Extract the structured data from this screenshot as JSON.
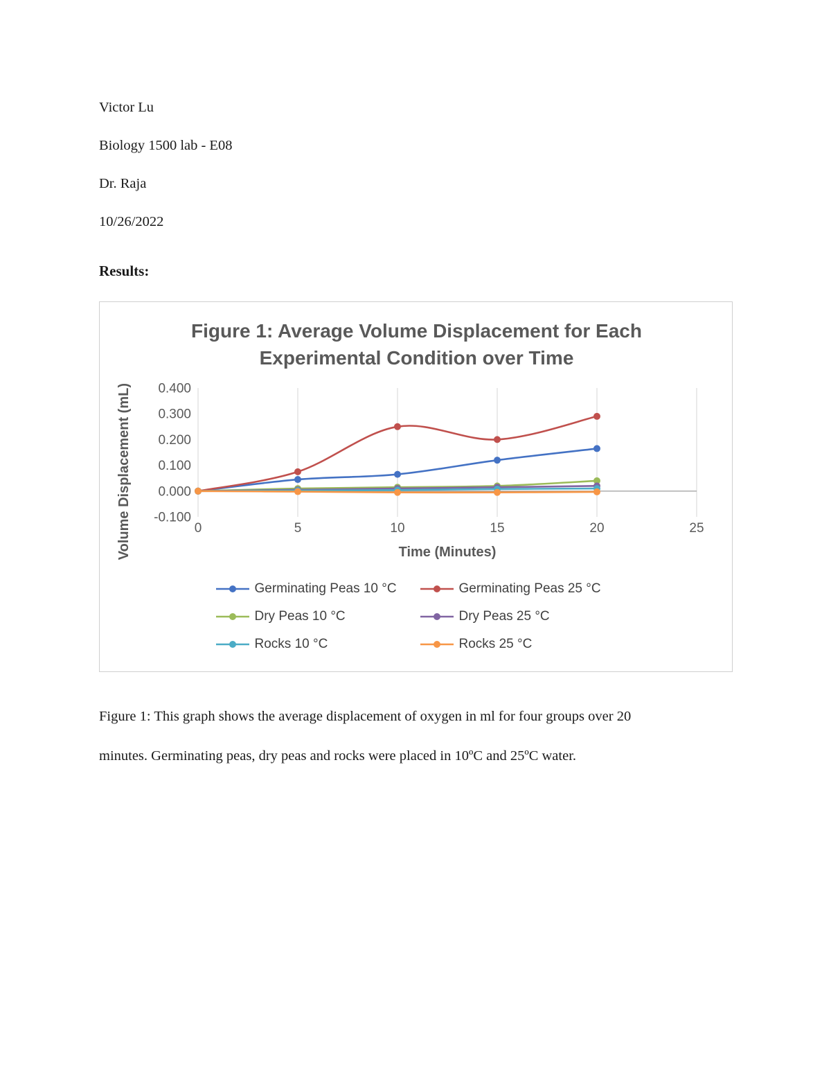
{
  "page": {
    "header_lines": [
      "Victor Lu",
      "Biology 1500 lab - E08",
      "Dr. Raja",
      "10/26/2022"
    ],
    "results_heading": "Results:",
    "caption_line1": "Figure 1: This graph shows the average displacement of oxygen in ml for four groups over 20",
    "caption_line2": "minutes. Germinating peas, dry peas and rocks were placed in 10ºC and 25ºC water."
  },
  "chart_data": {
    "type": "line",
    "title_line1": "Figure 1: Average Volume Displacement for Each",
    "title_line2": "Experimental Condition over Time",
    "xlabel": "Time (Minutes)",
    "ylabel": "Volume Displacement (mL)",
    "x": [
      0,
      5,
      10,
      15,
      20
    ],
    "xticks": [
      0,
      5,
      10,
      15,
      20,
      25
    ],
    "ytick_labels": [
      "0.400",
      "0.300",
      "0.200",
      "0.100",
      "0.000",
      "-0.100"
    ],
    "ytick_values": [
      0.4,
      0.3,
      0.2,
      0.1,
      0.0,
      -0.1
    ],
    "xlim": [
      0,
      25
    ],
    "ylim": [
      -0.1,
      0.4
    ],
    "gridlines": "vertical",
    "legend_position": "bottom",
    "series": [
      {
        "name": "Germinating Peas 10 °C",
        "color": "#4472C4",
        "values": [
          0.0,
          0.045,
          0.065,
          0.12,
          0.165
        ]
      },
      {
        "name": "Germinating Peas 25 °C",
        "color": "#C0504D",
        "values": [
          0.0,
          0.075,
          0.25,
          0.2,
          0.29
        ]
      },
      {
        "name": "Dry Peas 10 °C",
        "color": "#9BBB59",
        "values": [
          0.0,
          0.01,
          0.015,
          0.02,
          0.04
        ]
      },
      {
        "name": "Dry Peas 25 °C",
        "color": "#8064A2",
        "values": [
          0.0,
          0.005,
          0.01,
          0.015,
          0.02
        ]
      },
      {
        "name": "Rocks 10 °C",
        "color": "#4BACC6",
        "values": [
          0.0,
          0.002,
          0.004,
          0.008,
          0.01
        ]
      },
      {
        "name": "Rocks 25 °C",
        "color": "#F79646",
        "values": [
          0.0,
          -0.002,
          -0.005,
          -0.005,
          -0.003
        ]
      }
    ]
  }
}
